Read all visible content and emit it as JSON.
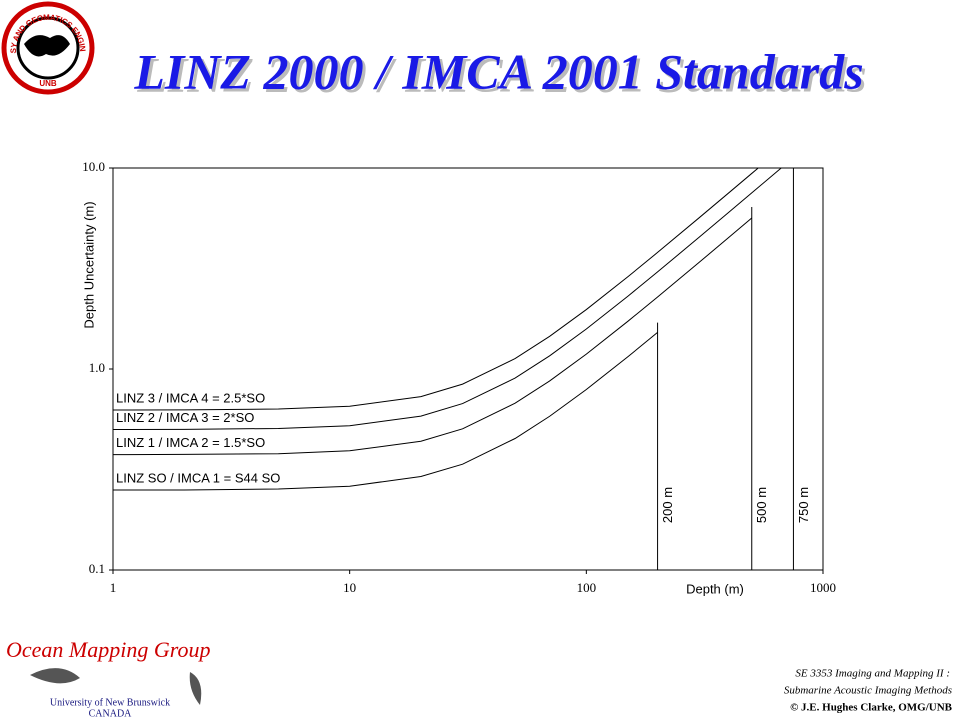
{
  "header": {
    "title": "LINZ 2000 / IMCA 2001 Standards",
    "logo_text": "GEODESY AND GEOMATICS ENGINEERING",
    "logo_sub": "UNB"
  },
  "chart_data": {
    "type": "line",
    "log_x": true,
    "log_y": true,
    "grid": false,
    "color": "#000000",
    "x_label": "Depth (m)",
    "y_label": "Depth Uncertainty (m)",
    "xlim": [
      1,
      1000
    ],
    "ylim": [
      0.1,
      10
    ],
    "xticks": [
      1,
      10,
      100,
      1000
    ],
    "yticks": [
      0.1,
      {
        "value": 1,
        "label": "1.0"
      },
      {
        "value": 10,
        "label": "10.0"
      }
    ],
    "series": [
      {
        "name": "LINZ SO / IMCA 1 = S44 SO",
        "x": [
          1,
          2,
          5,
          10,
          20,
          30,
          50,
          70,
          100,
          150,
          200
        ],
        "values": [
          0.25,
          0.25,
          0.253,
          0.261,
          0.292,
          0.336,
          0.451,
          0.582,
          0.791,
          1.152,
          1.521
        ]
      },
      {
        "name": "LINZ 1 / IMCA 2 = 1.5*SO",
        "x": [
          1,
          2,
          5,
          10,
          20,
          30,
          50,
          70,
          100,
          150,
          200,
          300,
          400,
          500
        ],
        "values": [
          0.375,
          0.376,
          0.379,
          0.392,
          0.437,
          0.504,
          0.676,
          0.872,
          1.186,
          1.729,
          2.281,
          3.396,
          4.516,
          5.637
        ]
      },
      {
        "name": "LINZ 2 / IMCA 3 = 2*SO",
        "x": [
          1,
          2,
          5,
          10,
          20,
          30,
          50,
          70,
          100,
          150,
          200,
          300,
          400,
          500,
          665
        ],
        "values": [
          0.5,
          0.501,
          0.506,
          0.522,
          0.583,
          0.673,
          0.901,
          1.163,
          1.581,
          2.305,
          3.041,
          4.528,
          6.021,
          7.517,
          9.99
        ]
      },
      {
        "name": "LINZ 3 / IMCA 4 = 2.5*SO",
        "x": [
          1,
          2,
          5,
          10,
          20,
          30,
          50,
          70,
          100,
          150,
          200,
          300,
          400,
          500,
          531
        ],
        "values": [
          0.625,
          0.626,
          0.632,
          0.653,
          0.729,
          0.841,
          1.127,
          1.454,
          1.976,
          2.881,
          3.802,
          5.66,
          7.526,
          9.396,
          9.976
        ]
      }
    ],
    "depth_lines": [
      {
        "x": 200,
        "top": 1.7,
        "label": "200 m"
      },
      {
        "x": 500,
        "top": 6.4,
        "label": "500 m"
      },
      {
        "x": 750,
        "top": 10,
        "label": "750 m"
      }
    ]
  },
  "footer": {
    "group": "Ocean Mapping Group",
    "university": "University of New Brunswick",
    "country": "CANADA",
    "course": "SE 3353 Imaging and Mapping II :",
    "course_sub": "Submarine Acoustic Imaging Methods",
    "credit": "© J.E. Hughes Clarke, OMG/UNB"
  }
}
